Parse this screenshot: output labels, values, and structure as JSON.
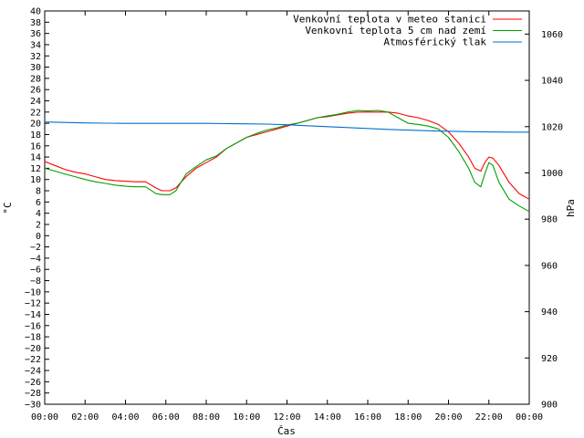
{
  "chart_data": {
    "type": "line",
    "xlabel": "Čas",
    "ylabel_left": "°C",
    "ylabel_right": "hPa",
    "ylim_left": [
      -30,
      40
    ],
    "ylim_right": [
      900,
      1070
    ],
    "xlim_hours": [
      0,
      24
    ],
    "grid": false,
    "legend_position": "top-right",
    "x_tick_labels": [
      "00:00",
      "02:00",
      "04:00",
      "06:00",
      "08:00",
      "10:00",
      "12:00",
      "14:00",
      "16:00",
      "18:00",
      "20:00",
      "22:00",
      "00:00"
    ],
    "y_left_ticks": [
      40,
      38,
      36,
      34,
      32,
      30,
      28,
      26,
      24,
      22,
      20,
      18,
      16,
      14,
      12,
      10,
      8,
      6,
      4,
      2,
      0,
      -2,
      -4,
      -6,
      -8,
      -10,
      -12,
      -14,
      -16,
      -18,
      -20,
      -22,
      -24,
      -26,
      -28,
      -30
    ],
    "y_left_tick_labels": [
      "40",
      "38",
      "36",
      "34",
      "32",
      "30",
      "28",
      "26",
      "24",
      "22",
      "20",
      "18",
      "16",
      "14",
      "12",
      "10",
      "8",
      "6",
      "4",
      "2",
      "0",
      "−2",
      "−4",
      "−6",
      "−8",
      "−10",
      "−12",
      "−14",
      "−16",
      "−18",
      "−20",
      "−22",
      "−24",
      "−26",
      "−28",
      "−30"
    ],
    "y_right_ticks": [
      900,
      920,
      940,
      960,
      980,
      1000,
      1020,
      1040,
      1060
    ],
    "y_right_tick_labels": [
      "900",
      "920",
      "940",
      "960",
      "980",
      "1000",
      "1020",
      "1040",
      "1060"
    ],
    "series": [
      {
        "name": "Venkovní teplota v meteo stanici",
        "axis": "left",
        "color": "#ff0000",
        "x": [
          0,
          0.5,
          1,
          1.5,
          2,
          2.5,
          3,
          3.5,
          4,
          4.5,
          5,
          5.5,
          5.8,
          6.2,
          6.5,
          7,
          7.5,
          8,
          8.5,
          9,
          9.5,
          10,
          10.5,
          11,
          11.5,
          12,
          12.5,
          13,
          13.5,
          14,
          14.5,
          15,
          15.5,
          16,
          16.5,
          17,
          17.5,
          18,
          18.5,
          19,
          19.5,
          20,
          20.5,
          21,
          21.3,
          21.6,
          21.8,
          22,
          22.2,
          22.5,
          23,
          23.5,
          24
        ],
        "y": [
          13.2,
          12.5,
          11.8,
          11.3,
          11.0,
          10.5,
          10.0,
          9.8,
          9.7,
          9.6,
          9.6,
          8.5,
          8.0,
          8.0,
          8.5,
          10.5,
          12.0,
          13.0,
          14.0,
          15.5,
          16.5,
          17.5,
          18.0,
          18.5,
          19.0,
          19.5,
          20.0,
          20.5,
          21.0,
          21.2,
          21.5,
          21.8,
          22.0,
          22.0,
          22.0,
          22.0,
          21.8,
          21.3,
          21.0,
          20.5,
          19.8,
          18.5,
          16.5,
          14.0,
          12.0,
          11.5,
          13.0,
          14.0,
          13.8,
          12.5,
          9.5,
          7.5,
          6.5
        ]
      },
      {
        "name": "Venkovní teplota 5 cm nad zemí",
        "axis": "left",
        "color": "#00a000",
        "x": [
          0,
          0.5,
          1,
          1.5,
          2,
          2.5,
          3,
          3.5,
          4,
          4.5,
          5,
          5.5,
          5.8,
          6.2,
          6.5,
          7,
          7.5,
          8,
          8.5,
          9,
          9.5,
          10,
          10.5,
          11,
          11.5,
          12,
          12.5,
          13,
          13.5,
          14,
          14.5,
          15,
          15.5,
          16,
          16.5,
          17,
          17.5,
          18,
          18.5,
          19,
          19.5,
          20,
          20.5,
          21,
          21.3,
          21.6,
          21.8,
          22,
          22.2,
          22.5,
          23,
          23.5,
          24
        ],
        "y": [
          12.0,
          11.5,
          11.0,
          10.5,
          10.0,
          9.6,
          9.3,
          9.0,
          8.8,
          8.7,
          8.7,
          7.5,
          7.3,
          7.3,
          8.0,
          11.0,
          12.3,
          13.5,
          14.2,
          15.5,
          16.5,
          17.5,
          18.2,
          18.8,
          19.2,
          19.7,
          20.0,
          20.5,
          21.0,
          21.3,
          21.6,
          22.0,
          22.3,
          22.2,
          22.3,
          22.0,
          21.0,
          20.0,
          19.8,
          19.5,
          19.0,
          17.5,
          15.0,
          12.0,
          9.5,
          8.7,
          11.0,
          13.0,
          12.5,
          9.5,
          6.5,
          5.3,
          4.3
        ]
      },
      {
        "name": "Atmosférický tlak",
        "axis": "right",
        "color": "#0070d0",
        "x": [
          0,
          1,
          2,
          3,
          4,
          5,
          6,
          7,
          8,
          9,
          10,
          11,
          12,
          13,
          14,
          15,
          16,
          17,
          18,
          19,
          20,
          21,
          22,
          23,
          24
        ],
        "y": [
          1022.0,
          1021.8,
          1021.6,
          1021.5,
          1021.4,
          1021.4,
          1021.4,
          1021.4,
          1021.4,
          1021.3,
          1021.2,
          1021.1,
          1020.8,
          1020.4,
          1020.0,
          1019.6,
          1019.2,
          1018.8,
          1018.5,
          1018.2,
          1018.0,
          1017.8,
          1017.7,
          1017.6,
          1017.6
        ]
      }
    ]
  }
}
